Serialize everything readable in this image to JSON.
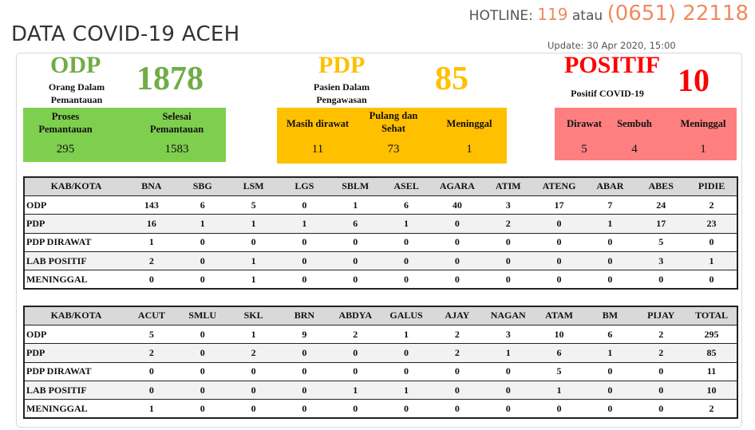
{
  "header": {
    "title": "DATA COVID-19 ACEH",
    "hotline_label": "HOTLINE:",
    "hotline_number1": "119",
    "hotline_connector": "atau",
    "hotline_number2": "(0651) 22118",
    "update": "Update: 30 Apr 2020, 15:00"
  },
  "colors": {
    "green": "#7fcf4f",
    "yellow": "#ffc000",
    "red": "#ff7f80",
    "accent": "#f08a5d"
  },
  "odp": {
    "label": "ODP",
    "subtitle_line1": "Orang Dalam",
    "subtitle_line2": "Pemantauan",
    "total": "1878",
    "proses_label_line1": "Proses",
    "proses_label_line2": "Pemantauan",
    "proses_value": "295",
    "selesai_label_line1": "Selesai",
    "selesai_label_line2": "Pemantauan",
    "selesai_value": "1583"
  },
  "pdp": {
    "label": "PDP",
    "subtitle_line1": "Pasien Dalam",
    "subtitle_line2": "Pengawasan",
    "total": "85",
    "dirawat_label": "Masih dirawat",
    "dirawat_value": "11",
    "pulang_label_line1": "Pulang dan",
    "pulang_label_line2": "Sehat",
    "pulang_value": "73",
    "meninggal_label": "Meninggal",
    "meninggal_value": "1"
  },
  "positif": {
    "label": "POSITIF",
    "subtitle": "Positif COVID-19",
    "total": "10",
    "dirawat_label": "Dirawat",
    "dirawat_value": "5",
    "sembuh_label": "Sembuh",
    "sembuh_value": "4",
    "meninggal_label": "Meninggal",
    "meninggal_value": "1"
  },
  "table1": {
    "headers": [
      "KAB/KOTA",
      "BNA",
      "SBG",
      "LSM",
      "LGS",
      "SBLM",
      "ASEL",
      "AGARA",
      "ATIM",
      "ATENG",
      "ABAR",
      "ABES",
      "PIDIE"
    ],
    "rows": [
      [
        "ODP",
        "143",
        "6",
        "5",
        "0",
        "1",
        "6",
        "40",
        "3",
        "17",
        "7",
        "24",
        "2"
      ],
      [
        "PDP",
        "16",
        "1",
        "1",
        "1",
        "6",
        "1",
        "0",
        "2",
        "0",
        "1",
        "17",
        "23"
      ],
      [
        "PDP DIRAWAT",
        "1",
        "0",
        "0",
        "0",
        "0",
        "0",
        "0",
        "0",
        "0",
        "0",
        "5",
        "0"
      ],
      [
        "LAB POSITIF",
        "2",
        "0",
        "1",
        "0",
        "0",
        "0",
        "0",
        "0",
        "0",
        "0",
        "3",
        "1"
      ],
      [
        "MENINGGAL",
        "0",
        "0",
        "1",
        "0",
        "0",
        "0",
        "0",
        "0",
        "0",
        "0",
        "0",
        "0"
      ]
    ]
  },
  "table2": {
    "headers": [
      "KAB/KOTA",
      "ACUT",
      "SMLU",
      "SKL",
      "BRN",
      "ABDYA",
      "GALUS",
      "AJAY",
      "NAGAN",
      "ATAM",
      "BM",
      "PIJAY",
      "TOTAL"
    ],
    "rows": [
      [
        "ODP",
        "5",
        "0",
        "1",
        "9",
        "2",
        "1",
        "2",
        "3",
        "10",
        "6",
        "2",
        "295"
      ],
      [
        "PDP",
        "2",
        "0",
        "2",
        "0",
        "0",
        "0",
        "2",
        "1",
        "6",
        "1",
        "2",
        "85"
      ],
      [
        "PDP DIRAWAT",
        "0",
        "0",
        "0",
        "0",
        "0",
        "0",
        "0",
        "0",
        "5",
        "0",
        "0",
        "11"
      ],
      [
        "LAB POSITIF",
        "0",
        "0",
        "0",
        "0",
        "1",
        "1",
        "0",
        "0",
        "1",
        "0",
        "0",
        "10"
      ],
      [
        "MENINGGAL",
        "1",
        "0",
        "0",
        "0",
        "0",
        "0",
        "0",
        "0",
        "0",
        "0",
        "0",
        "2"
      ]
    ]
  }
}
